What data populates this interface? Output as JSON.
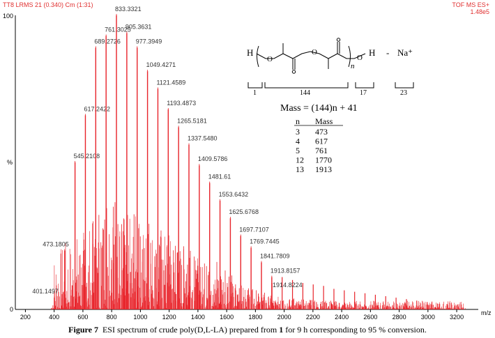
{
  "header": {
    "left": "TT8 LRMS 21 (0.340) Cm (1:31)",
    "right_line1": "TOF MS ES+",
    "right_line2": "1.48e5"
  },
  "caption": {
    "label": "Figure 7",
    "text": "ESI spectrum of crude poly(D,L-LA) prepared from ",
    "bold": "1",
    "text2": " for 9 h corresponding to 95 % conversion."
  },
  "inset": {
    "formula_parts": [
      "H",
      "O",
      "O",
      "O",
      "n",
      "H",
      "-",
      "Na⁺"
    ],
    "bracket_labels": [
      "1",
      "144",
      "17",
      "23"
    ],
    "mass_formula": "Mass = (144)n + 41",
    "table_headers": [
      "n",
      "Mass"
    ],
    "table_rows": [
      [
        "3",
        "473"
      ],
      [
        "4",
        "617"
      ],
      [
        "5",
        "761"
      ],
      [
        "12",
        "1770"
      ],
      [
        "13",
        "1913"
      ]
    ]
  },
  "chart_data": {
    "type": "bar",
    "xlabel": "m/z",
    "ylabel": "%",
    "xlim": [
      130,
      3350
    ],
    "ylim": [
      0,
      100
    ],
    "x_ticks": [
      200,
      400,
      600,
      800,
      1000,
      1200,
      1400,
      1600,
      1800,
      2000,
      2200,
      2400,
      2600,
      2800,
      3000,
      3200
    ],
    "y_ticks": [
      "0",
      "100"
    ],
    "peaks": [
      {
        "mz": 401.1497,
        "intensity": 4,
        "label": "401.1497"
      },
      {
        "mz": 473.1805,
        "intensity": 20,
        "label": "473.1805"
      },
      {
        "mz": 545.2108,
        "intensity": 50,
        "label": "545.2108"
      },
      {
        "mz": 617.2422,
        "intensity": 66,
        "label": "617.2422"
      },
      {
        "mz": 689.2726,
        "intensity": 89,
        "label": "689.2726"
      },
      {
        "mz": 761.3025,
        "intensity": 93,
        "label": "761.3025"
      },
      {
        "mz": 833.3321,
        "intensity": 100,
        "label": "833.3321"
      },
      {
        "mz": 905.3631,
        "intensity": 94,
        "label": "905.3631"
      },
      {
        "mz": 977.3949,
        "intensity": 89,
        "label": "977.3949"
      },
      {
        "mz": 1049.4271,
        "intensity": 81,
        "label": "1049.4271"
      },
      {
        "mz": 1121.4589,
        "intensity": 75,
        "label": "1121.4589"
      },
      {
        "mz": 1193.4873,
        "intensity": 68,
        "label": "1193.4873"
      },
      {
        "mz": 1265.5181,
        "intensity": 62,
        "label": "1265.5181"
      },
      {
        "mz": 1337.548,
        "intensity": 56,
        "label": "1337.5480"
      },
      {
        "mz": 1409.5786,
        "intensity": 49,
        "label": "1409.5786"
      },
      {
        "mz": 1481.61,
        "intensity": 43,
        "label": "1481.61"
      },
      {
        "mz": 1553.6432,
        "intensity": 37,
        "label": "1553.6432"
      },
      {
        "mz": 1625.6768,
        "intensity": 31,
        "label": "1625.6768"
      },
      {
        "mz": 1697.7107,
        "intensity": 25,
        "label": "1697.7107"
      },
      {
        "mz": 1769.7445,
        "intensity": 21,
        "label": "1769.7445"
      },
      {
        "mz": 1841.7809,
        "intensity": 16,
        "label": "1841.7809"
      },
      {
        "mz": 1913.8157,
        "intensity": 11,
        "label": "1913.8157"
      },
      {
        "mz": 1914.8224,
        "intensity": 9,
        "label": "1914.8224"
      }
    ],
    "unlabeled_peaks": [
      {
        "mz": 1985.8,
        "intensity": 11
      },
      {
        "mz": 2057.9,
        "intensity": 10
      },
      {
        "mz": 2129.9,
        "intensity": 9
      },
      {
        "mz": 2201.9,
        "intensity": 8.5
      },
      {
        "mz": 2274.0,
        "intensity": 8
      },
      {
        "mz": 2346.0,
        "intensity": 7
      },
      {
        "mz": 2418.0,
        "intensity": 6.5
      },
      {
        "mz": 2490.1,
        "intensity": 6
      },
      {
        "mz": 2562.1,
        "intensity": 5.5
      },
      {
        "mz": 2634.2,
        "intensity": 5
      },
      {
        "mz": 2706.2,
        "intensity": 4.5
      },
      {
        "mz": 2778.2,
        "intensity": 4
      },
      {
        "mz": 2850.3,
        "intensity": 3.5
      },
      {
        "mz": 2922.3,
        "intensity": 3
      },
      {
        "mz": 2994.4,
        "intensity": 2.5
      },
      {
        "mz": 3066.4,
        "intensity": 2
      },
      {
        "mz": 3138.4,
        "intensity": 1.5
      },
      {
        "mz": 3210.5,
        "intensity": 1
      }
    ],
    "colors": {
      "peaks": "#e8232a",
      "labels": "#333333",
      "axis": "#000000",
      "header": "#e03030"
    }
  }
}
